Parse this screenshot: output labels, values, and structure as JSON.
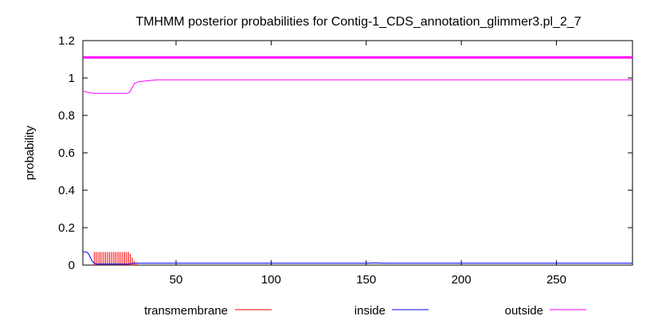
{
  "chart_data": {
    "type": "line",
    "title": "TMHMM posterior probabilities for Contig-1_CDS_annotation_glimmer3.pl_2_7",
    "xlabel": "",
    "ylabel": "probability",
    "xlim": [
      1,
      290
    ],
    "ylim": [
      0,
      1.2
    ],
    "x_ticks": [
      "50",
      "100",
      "150",
      "200",
      "250"
    ],
    "y_ticks": [
      "0",
      "0.2",
      "0.4",
      "0.6",
      "0.8",
      "1",
      "1.2"
    ],
    "x_tick_values": [
      50,
      100,
      150,
      200,
      250
    ],
    "y_tick_values": [
      0,
      0.2,
      0.4,
      0.6,
      0.8,
      1.0,
      1.2
    ],
    "legend_position": "bottom",
    "topology_line": {
      "y": 1.11,
      "x_start": 1,
      "x_end": 290,
      "color": "#ff00ff"
    },
    "series": [
      {
        "name": "transmembrane",
        "color": "#ff0000",
        "style": "impulse",
        "points": [
          [
            7,
            0.07
          ],
          [
            8,
            0.07
          ],
          [
            9,
            0.07
          ],
          [
            10,
            0.07
          ],
          [
            11,
            0.07
          ],
          [
            12,
            0.07
          ],
          [
            13,
            0.07
          ],
          [
            14,
            0.07
          ],
          [
            15,
            0.07
          ],
          [
            16,
            0.07
          ],
          [
            17,
            0.07
          ],
          [
            18,
            0.07
          ],
          [
            19,
            0.07
          ],
          [
            20,
            0.07
          ],
          [
            21,
            0.07
          ],
          [
            22,
            0.07
          ],
          [
            23,
            0.07
          ],
          [
            24,
            0.07
          ],
          [
            25,
            0.07
          ],
          [
            26,
            0.06
          ],
          [
            27,
            0.04
          ],
          [
            28,
            0.02
          ],
          [
            29,
            0.01
          ]
        ]
      },
      {
        "name": "inside",
        "color": "#0000ff",
        "style": "line",
        "points": [
          [
            1,
            0.07
          ],
          [
            3,
            0.07
          ],
          [
            4,
            0.06
          ],
          [
            5,
            0.04
          ],
          [
            6,
            0.02
          ],
          [
            7,
            0.01
          ],
          [
            8,
            0.005
          ],
          [
            25,
            0.005
          ],
          [
            26,
            0.008
          ],
          [
            28,
            0.01
          ],
          [
            30,
            0.01
          ],
          [
            150,
            0.01
          ],
          [
            155,
            0.012
          ],
          [
            160,
            0.01
          ],
          [
            290,
            0.01
          ]
        ]
      },
      {
        "name": "outside",
        "color": "#ff00ff",
        "style": "line",
        "points": [
          [
            1,
            0.93
          ],
          [
            3,
            0.925
          ],
          [
            5,
            0.92
          ],
          [
            8,
            0.918
          ],
          [
            24,
            0.918
          ],
          [
            25,
            0.92
          ],
          [
            26,
            0.93
          ],
          [
            27,
            0.95
          ],
          [
            28,
            0.97
          ],
          [
            30,
            0.98
          ],
          [
            35,
            0.985
          ],
          [
            40,
            0.99
          ],
          [
            290,
            0.99
          ]
        ]
      }
    ]
  }
}
